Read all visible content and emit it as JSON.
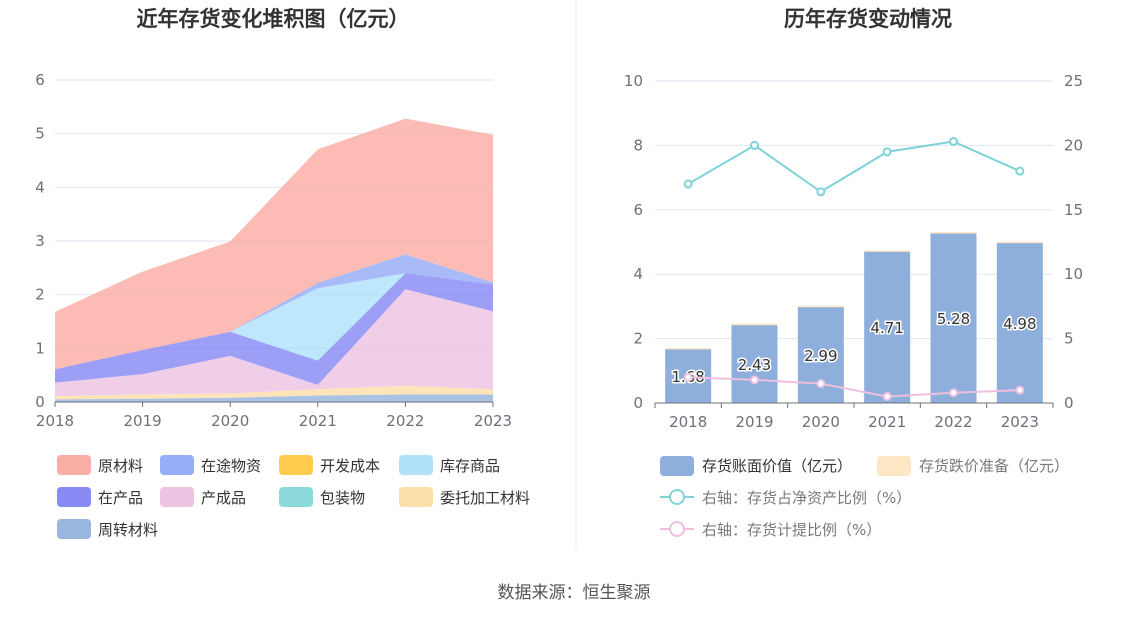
{
  "source_text": "数据来源：恒生聚源",
  "left_chart": {
    "title": "近年存货变化堆积图（亿元）",
    "chart_data": {
      "type": "area",
      "stacked": true,
      "title": "近年存货变化堆积图（亿元）",
      "categories": [
        "2018",
        "2019",
        "2020",
        "2021",
        "2022",
        "2023"
      ],
      "ylim": [
        0,
        6
      ],
      "yticks": [
        0,
        1,
        2,
        3,
        4,
        5,
        6
      ],
      "grid": true,
      "legend_position": "bottom",
      "series": [
        {
          "name": "周转材料",
          "color": "#8eaedb",
          "values": [
            0.05,
            0.06,
            0.08,
            0.12,
            0.14,
            0.14
          ]
        },
        {
          "name": "委托加工材料",
          "color": "#fddba0",
          "values": [
            0.06,
            0.08,
            0.08,
            0.12,
            0.16,
            0.1
          ]
        },
        {
          "name": "包装物",
          "color": "#7fd5d5",
          "values": [
            0.0,
            0.0,
            0.0,
            0.0,
            0.0,
            0.0
          ]
        },
        {
          "name": "产成品",
          "color": "#ecbddf",
          "values": [
            0.25,
            0.38,
            0.7,
            0.08,
            1.8,
            1.45
          ]
        },
        {
          "name": "在产品",
          "color": "#7c7df3",
          "values": [
            0.25,
            0.45,
            0.45,
            0.45,
            0.3,
            0.5
          ]
        },
        {
          "name": "库存商品",
          "color": "#a8defb",
          "values": [
            0.0,
            0.0,
            0.0,
            1.35,
            0.0,
            0.0
          ]
        },
        {
          "name": "开发成本",
          "color": "#ffc63d",
          "values": [
            0.0,
            0.0,
            0.0,
            0.0,
            0.0,
            0.0
          ]
        },
        {
          "name": "在途物资",
          "color": "#8ba4f6",
          "values": [
            0.0,
            0.0,
            0.0,
            0.1,
            0.35,
            0.04
          ]
        },
        {
          "name": "原材料",
          "color": "#fba59c",
          "values": [
            1.07,
            1.46,
            1.68,
            2.49,
            2.53,
            2.75
          ]
        }
      ],
      "legend_order": [
        "原材料",
        "在途物资",
        "开发成本",
        "库存商品",
        "在产品",
        "产成品",
        "包装物",
        "委托加工材料",
        "周转材料"
      ]
    }
  },
  "right_chart": {
    "title": "历年存货变动情况",
    "chart_data": {
      "type": "bar",
      "title": "历年存货变动情况",
      "categories": [
        "2018",
        "2019",
        "2020",
        "2021",
        "2022",
        "2023"
      ],
      "ylim": [
        0,
        10
      ],
      "yticks": [
        0,
        2,
        4,
        6,
        8,
        10
      ],
      "y2lim": [
        0,
        25
      ],
      "y2ticks": [
        0,
        5,
        10,
        15,
        20,
        25
      ],
      "grid": true,
      "legend_position": "bottom",
      "series": [
        {
          "name": "存货账面价值（亿元）",
          "type": "bar",
          "axis": "left",
          "color": "#8eaedb",
          "values": [
            1.68,
            2.43,
            2.99,
            4.71,
            5.28,
            4.98
          ],
          "labels": [
            "1.68",
            "2.43",
            "2.99",
            "4.71",
            "5.28",
            "4.98"
          ]
        },
        {
          "name": "存货跌价准备（亿元）",
          "type": "bar",
          "axis": "left",
          "stacked": true,
          "color": "#fde7c4",
          "values": [
            0.03,
            0.03,
            0.03,
            0.03,
            0.03,
            0.03
          ]
        },
        {
          "name": "右轴：存货占净资产比例（%）",
          "type": "line",
          "axis": "right",
          "color": "#7fd3d6",
          "values": [
            17.0,
            20.0,
            16.4,
            19.5,
            20.3,
            18.0
          ]
        },
        {
          "name": "右轴：存货计提比例（%）",
          "type": "line",
          "axis": "right",
          "color": "#efbfe0",
          "values": [
            2.0,
            1.8,
            1.5,
            0.5,
            0.8,
            1.0
          ]
        }
      ]
    }
  }
}
